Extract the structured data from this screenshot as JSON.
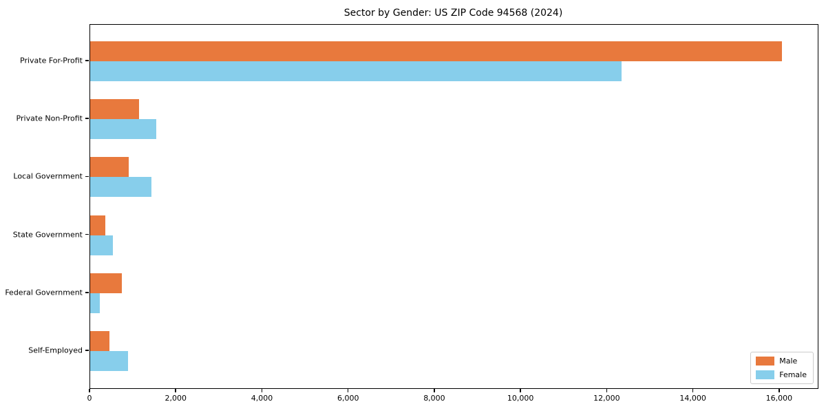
{
  "title": "Sector by Gender: US ZIP Code 94568 (2024)",
  "colors": {
    "male": "#e8793d",
    "female": "#87ceeb",
    "axis": "#000000",
    "legend_border": "#cccccc",
    "background": "#ffffff"
  },
  "legend": {
    "position": "lower right",
    "items": [
      {
        "label": "Male",
        "color": "#e8793d"
      },
      {
        "label": "Female",
        "color": "#87ceeb"
      }
    ]
  },
  "chart_data": {
    "type": "bar",
    "orientation": "horizontal",
    "title": "Sector by Gender: US ZIP Code 94568 (2024)",
    "categories": [
      "Private For-Profit",
      "Private Non-Profit",
      "Local Government",
      "State Government",
      "Federal Government",
      "Self-Employed"
    ],
    "series": [
      {
        "name": "Male",
        "color": "#e8793d",
        "values": [
          16050,
          1130,
          890,
          350,
          730,
          450
        ]
      },
      {
        "name": "Female",
        "color": "#87ceeb",
        "values": [
          12330,
          1530,
          1420,
          530,
          220,
          880
        ]
      }
    ],
    "xlabel": "",
    "ylabel": "",
    "xlim": [
      0,
      16880
    ],
    "xticks": [
      0,
      2000,
      4000,
      6000,
      8000,
      10000,
      12000,
      14000,
      16000
    ],
    "xtick_labels": [
      "0",
      "2,000",
      "4,000",
      "6,000",
      "8,000",
      "10,000",
      "12,000",
      "14,000",
      "16,000"
    ],
    "grid": false,
    "legend_position": "lower right"
  }
}
